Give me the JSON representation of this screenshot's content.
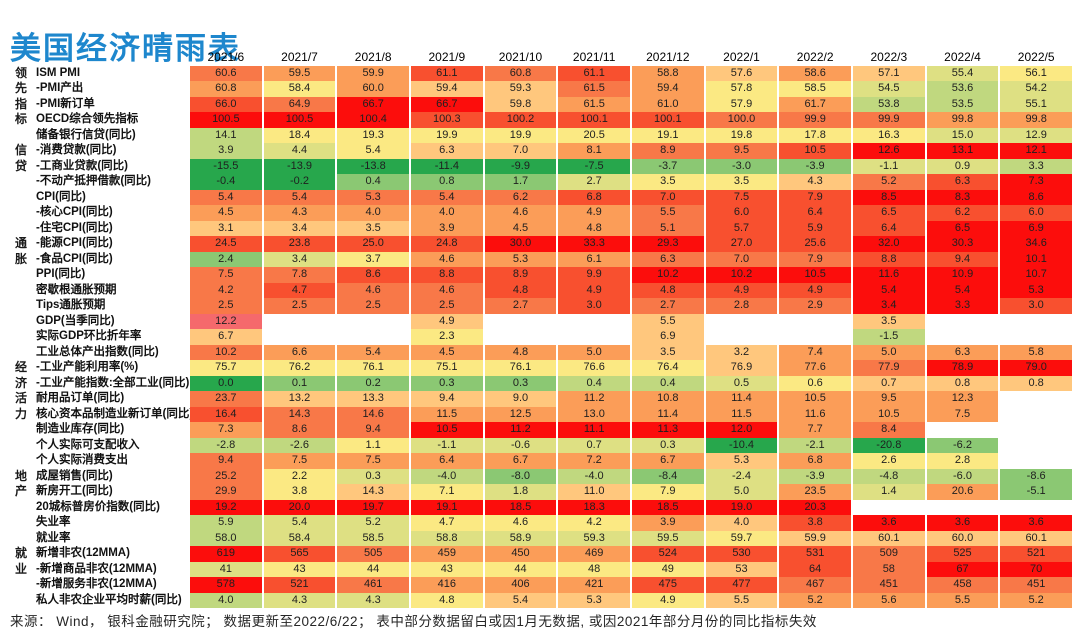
{
  "title": "美国经济晴雨表",
  "title_color": "#1E87CD",
  "footer": "来源： Wind， 银科金融研究院； 数据更新至2022/6/22； 表中部分数据留白或因1月无数据, 或因2021年部分月份的同比指标失效",
  "palette": {
    "g3": "#27A74C",
    "g2": "#8BC873",
    "g1": "#C0D87F",
    "y1": "#DEE083",
    "y2": "#FBE983",
    "o1": "#FFC77D",
    "o2": "#FB9D58",
    "o3": "#F87848",
    "r1": "#F8502F",
    "r2": "#FC0D0C",
    "pk": "#F5696C",
    "wh": "#FFFFFF"
  },
  "chart_data": {
    "type": "heatmap",
    "title": "美国经济晴雨表",
    "legend": "per-row green(low/cool) → yellow → red(high/hot) scale; blank cells = no data",
    "columns": [
      "2021/6",
      "2021/7",
      "2021/8",
      "2021/9",
      "2021/10",
      "2021/11",
      "2021/12",
      "2022/1",
      "2022/2",
      "2022/3",
      "2022/4",
      "2022/5"
    ],
    "rows": [
      {
        "group": "领",
        "label": "ISM PMI",
        "values": [
          "60.6",
          "59.5",
          "59.9",
          "61.1",
          "60.8",
          "61.1",
          "58.8",
          "57.6",
          "58.6",
          "57.1",
          "55.4",
          "56.1"
        ],
        "tones": [
          "o3",
          "o2",
          "o2",
          "r1",
          "o3",
          "r1",
          "o2",
          "o1",
          "o2",
          "o1",
          "y1",
          "y2"
        ]
      },
      {
        "group": "先",
        "label": "-PMI产出",
        "values": [
          "60.8",
          "58.4",
          "60.0",
          "59.4",
          "59.3",
          "61.5",
          "59.4",
          "57.8",
          "58.5",
          "54.5",
          "53.6",
          "54.2"
        ],
        "tones": [
          "o2",
          "y2",
          "o2",
          "o1",
          "o1",
          "o3",
          "o2",
          "y2",
          "y2",
          "y1",
          "g1",
          "y1"
        ]
      },
      {
        "group": "指",
        "label": "-PMI新订单",
        "values": [
          "66.0",
          "64.9",
          "66.7",
          "66.7",
          "59.8",
          "61.5",
          "61.0",
          "57.9",
          "61.7",
          "53.8",
          "53.5",
          "55.1"
        ],
        "tones": [
          "r1",
          "o3",
          "r2",
          "r2",
          "o1",
          "o2",
          "o2",
          "y2",
          "o2",
          "g1",
          "g1",
          "y1"
        ]
      },
      {
        "group": "标",
        "label": "OECD综合领先指标",
        "values": [
          "100.5",
          "100.5",
          "100.4",
          "100.3",
          "100.2",
          "100.1",
          "100.1",
          "100.0",
          "99.9",
          "99.9",
          "99.8",
          "99.8"
        ],
        "tones": [
          "r2",
          "r2",
          "r2",
          "r1",
          "r1",
          "r1",
          "r1",
          "o3",
          "o3",
          "o3",
          "o2",
          "o2"
        ]
      },
      {
        "group": "",
        "label": "储备银行信贷(同比)",
        "values": [
          "14.1",
          "18.4",
          "19.3",
          "19.9",
          "19.9",
          "20.5",
          "19.1",
          "19.8",
          "17.8",
          "16.3",
          "15.0",
          "12.9"
        ],
        "tones": [
          "g1",
          "y2",
          "y2",
          "y2",
          "y2",
          "y2",
          "y2",
          "y2",
          "y2",
          "y2",
          "y1",
          "y1"
        ]
      },
      {
        "group": "信",
        "label": "-消费贷款(同比)",
        "values": [
          "3.9",
          "4.4",
          "5.4",
          "6.3",
          "7.0",
          "8.1",
          "8.9",
          "9.5",
          "10.5",
          "12.6",
          "13.1",
          "12.1"
        ],
        "tones": [
          "g1",
          "y1",
          "y2",
          "o1",
          "o1",
          "o2",
          "o3",
          "o3",
          "r1",
          "r2",
          "r2",
          "r2"
        ]
      },
      {
        "group": "贷",
        "label": "-工商业贷款(同比)",
        "values": [
          "-15.5",
          "-13.9",
          "-13.8",
          "-11.4",
          "-9.9",
          "-7.5",
          "-3.7",
          "-3.0",
          "-3.9",
          "-1.1",
          "0.9",
          "3.3"
        ],
        "tones": [
          "g3",
          "g3",
          "g3",
          "g3",
          "g3",
          "g3",
          "g2",
          "g2",
          "g2",
          "y1",
          "y1",
          "g1"
        ]
      },
      {
        "group": "",
        "label": "-不动产抵押借款(同比)",
        "values": [
          "-0.4",
          "-0.2",
          "0.4",
          "0.8",
          "1.7",
          "2.7",
          "3.5",
          "3.5",
          "4.3",
          "5.2",
          "6.3",
          "7.3"
        ],
        "tones": [
          "g3",
          "g3",
          "g2",
          "g2",
          "g2",
          "y1",
          "y2",
          "y2",
          "o1",
          "o3",
          "r1",
          "r2"
        ]
      },
      {
        "group": "",
        "label": "CPI(同比)",
        "values": [
          "5.4",
          "5.4",
          "5.3",
          "5.4",
          "6.2",
          "6.8",
          "7.0",
          "7.5",
          "7.9",
          "8.5",
          "8.3",
          "8.6"
        ],
        "tones": [
          "o3",
          "o3",
          "o3",
          "o3",
          "o3",
          "r1",
          "r1",
          "r1",
          "r1",
          "r2",
          "r2",
          "r2"
        ]
      },
      {
        "group": "",
        "label": "-核心CPI(同比)",
        "values": [
          "4.5",
          "4.3",
          "4.0",
          "4.0",
          "4.6",
          "4.9",
          "5.5",
          "6.0",
          "6.4",
          "6.5",
          "6.2",
          "6.0"
        ],
        "tones": [
          "o2",
          "o2",
          "o2",
          "o2",
          "o2",
          "o2",
          "o3",
          "r1",
          "r1",
          "r1",
          "r1",
          "r1"
        ]
      },
      {
        "group": "",
        "label": "-住宅CPI(同比)",
        "values": [
          "3.1",
          "3.4",
          "3.5",
          "3.9",
          "4.5",
          "4.8",
          "5.1",
          "5.7",
          "5.9",
          "6.4",
          "6.5",
          "6.9"
        ],
        "tones": [
          "o1",
          "o1",
          "o1",
          "o2",
          "o2",
          "o2",
          "o3",
          "r1",
          "r1",
          "r1",
          "r2",
          "r2"
        ]
      },
      {
        "group": "通",
        "label": "-能源CPI(同比)",
        "values": [
          "24.5",
          "23.8",
          "25.0",
          "24.8",
          "30.0",
          "33.3",
          "29.3",
          "27.0",
          "25.6",
          "32.0",
          "30.3",
          "34.6"
        ],
        "tones": [
          "r1",
          "r1",
          "r1",
          "r1",
          "r2",
          "r2",
          "r2",
          "r1",
          "r1",
          "r2",
          "r2",
          "r2"
        ]
      },
      {
        "group": "胀",
        "label": "-食品CPI(同比)",
        "values": [
          "2.4",
          "3.4",
          "3.7",
          "4.6",
          "5.3",
          "6.1",
          "6.3",
          "7.0",
          "7.9",
          "8.8",
          "9.4",
          "10.1"
        ],
        "tones": [
          "g2",
          "y1",
          "y2",
          "o2",
          "o2",
          "o2",
          "o3",
          "o3",
          "o3",
          "r1",
          "r1",
          "r2"
        ]
      },
      {
        "group": "",
        "label": "PPI(同比)",
        "values": [
          "7.5",
          "7.8",
          "8.6",
          "8.8",
          "8.9",
          "9.9",
          "10.2",
          "10.2",
          "10.5",
          "11.6",
          "10.9",
          "10.7"
        ],
        "tones": [
          "o3",
          "o3",
          "r1",
          "r1",
          "r1",
          "r1",
          "r2",
          "r2",
          "r2",
          "r2",
          "r2",
          "r2"
        ]
      },
      {
        "group": "",
        "label": "密歇根通胀预期",
        "values": [
          "4.2",
          "4.7",
          "4.6",
          "4.6",
          "4.8",
          "4.9",
          "4.8",
          "4.9",
          "4.9",
          "5.4",
          "5.4",
          "5.3"
        ],
        "tones": [
          "o3",
          "r1",
          "o3",
          "o3",
          "r1",
          "r1",
          "r1",
          "r1",
          "r1",
          "r2",
          "r2",
          "r2"
        ]
      },
      {
        "group": "",
        "label": "Tips通胀预期",
        "values": [
          "2.5",
          "2.5",
          "2.5",
          "2.5",
          "2.7",
          "3.0",
          "2.7",
          "2.8",
          "2.9",
          "3.4",
          "3.3",
          "3.0"
        ],
        "tones": [
          "o3",
          "o3",
          "o3",
          "o3",
          "o3",
          "r1",
          "o3",
          "o3",
          "o3",
          "r2",
          "r2",
          "r1"
        ]
      },
      {
        "group": "",
        "label": "GDP(当季同比)",
        "values": [
          "12.2",
          "",
          "",
          "4.9",
          "",
          "",
          "5.5",
          "",
          "",
          "3.5",
          "",
          ""
        ],
        "tones": [
          "pk",
          "wh",
          "wh",
          "o1",
          "wh",
          "wh",
          "o1",
          "wh",
          "wh",
          "o1",
          "wh",
          "wh"
        ]
      },
      {
        "group": "",
        "label": "实际GDP环比折年率",
        "values": [
          "6.7",
          "",
          "",
          "2.3",
          "",
          "",
          "6.9",
          "",
          "",
          "-1.5",
          "",
          ""
        ],
        "tones": [
          "o1",
          "wh",
          "wh",
          "y2",
          "wh",
          "wh",
          "o1",
          "wh",
          "wh",
          "g1",
          "wh",
          "wh"
        ]
      },
      {
        "group": "",
        "label": "工业总体产出指数(同比)",
        "values": [
          "10.2",
          "6.6",
          "5.4",
          "4.5",
          "4.8",
          "5.0",
          "3.5",
          "3.2",
          "7.4",
          "5.0",
          "6.3",
          "5.8"
        ],
        "tones": [
          "o3",
          "o2",
          "o2",
          "o2",
          "o2",
          "o2",
          "o1",
          "o1",
          "o2",
          "o2",
          "o2",
          "o2"
        ]
      },
      {
        "group": "经",
        "label": "-工业产能利用率(%)",
        "values": [
          "75.7",
          "76.2",
          "76.1",
          "75.1",
          "76.1",
          "76.6",
          "76.4",
          "76.9",
          "77.6",
          "77.9",
          "78.9",
          "79.0"
        ],
        "tones": [
          "y2",
          "y2",
          "y2",
          "y2",
          "y2",
          "y2",
          "y2",
          "o1",
          "o2",
          "o3",
          "r2",
          "r2"
        ]
      },
      {
        "group": "济",
        "label": "-工业产能指数:全部工业(同比)",
        "values": [
          "0.0",
          "0.1",
          "0.2",
          "0.3",
          "0.3",
          "0.4",
          "0.4",
          "0.5",
          "0.6",
          "0.7",
          "0.8",
          "0.8"
        ],
        "tones": [
          "g3",
          "g2",
          "g2",
          "g2",
          "g2",
          "g1",
          "g1",
          "y1",
          "y2",
          "o1",
          "o1",
          "o1"
        ]
      },
      {
        "group": "活",
        "label": "耐用品订单(同比)",
        "values": [
          "23.7",
          "13.2",
          "13.3",
          "9.4",
          "9.0",
          "11.2",
          "10.8",
          "11.4",
          "10.5",
          "9.5",
          "12.3",
          ""
        ],
        "tones": [
          "o3",
          "o1",
          "o1",
          "o1",
          "o1",
          "o2",
          "o2",
          "o2",
          "o2",
          "o2",
          "o2",
          "wh"
        ]
      },
      {
        "group": "力",
        "label": "核心资本品制造业新订单(同比)",
        "values": [
          "16.4",
          "14.3",
          "14.6",
          "11.5",
          "12.5",
          "13.0",
          "11.4",
          "11.5",
          "11.6",
          "10.5",
          "7.5",
          ""
        ],
        "tones": [
          "r1",
          "o3",
          "o3",
          "o2",
          "o2",
          "o2",
          "o2",
          "o2",
          "o2",
          "o2",
          "o2",
          "wh"
        ]
      },
      {
        "group": "",
        "label": "制造业库存(同比)",
        "values": [
          "7.3",
          "8.6",
          "9.4",
          "10.5",
          "11.2",
          "11.1",
          "11.3",
          "12.0",
          "7.7",
          "8.4",
          "",
          ""
        ],
        "tones": [
          "o2",
          "o3",
          "o3",
          "r2",
          "r2",
          "r2",
          "r2",
          "r2",
          "o2",
          "o3",
          "wh",
          "wh"
        ]
      },
      {
        "group": "",
        "label": "个人实际可支配收入",
        "values": [
          "-2.8",
          "-2.6",
          "1.1",
          "-1.1",
          "-0.6",
          "0.7",
          "0.3",
          "-10.4",
          "-2.1",
          "-20.8",
          "-6.2",
          ""
        ],
        "tones": [
          "g1",
          "g1",
          "y2",
          "y1",
          "y1",
          "y1",
          "y1",
          "g3",
          "g1",
          "g3",
          "g2",
          "wh"
        ]
      },
      {
        "group": "",
        "label": "个人实际消费支出",
        "values": [
          "9.4",
          "7.5",
          "7.5",
          "6.4",
          "6.7",
          "7.2",
          "6.7",
          "5.3",
          "6.8",
          "2.6",
          "2.8",
          ""
        ],
        "tones": [
          "o3",
          "o2",
          "o2",
          "o2",
          "o2",
          "o2",
          "o2",
          "o1",
          "o2",
          "y2",
          "y2",
          "wh"
        ]
      },
      {
        "group": "地",
        "label": "成屋销售(同比)",
        "values": [
          "25.2",
          "2.2",
          "0.3",
          "-4.0",
          "-8.0",
          "-4.0",
          "-8.4",
          "-2.4",
          "-3.9",
          "-4.8",
          "-6.0",
          "-8.6"
        ],
        "tones": [
          "o3",
          "y2",
          "y1",
          "g1",
          "g2",
          "g1",
          "g2",
          "y1",
          "g1",
          "g1",
          "g1",
          "g2"
        ]
      },
      {
        "group": "产",
        "label": "新房开工(同比)",
        "values": [
          "29.9",
          "3.8",
          "14.3",
          "7.1",
          "1.8",
          "11.0",
          "7.9",
          "5.0",
          "23.5",
          "1.4",
          "20.6",
          "-5.1"
        ],
        "tones": [
          "o3",
          "y2",
          "o1",
          "y2",
          "y1",
          "o1",
          "y2",
          "y1",
          "o2",
          "y1",
          "o2",
          "g2"
        ]
      },
      {
        "group": "",
        "label": "20城标普房价指数(同比)",
        "values": [
          "19.2",
          "20.0",
          "19.7",
          "19.1",
          "18.5",
          "18.3",
          "18.5",
          "19.0",
          "20.3",
          "",
          "",
          ""
        ],
        "tones": [
          "r2",
          "r2",
          "r2",
          "r2",
          "r2",
          "r2",
          "r2",
          "r2",
          "r2",
          "wh",
          "wh",
          "wh"
        ]
      },
      {
        "group": "",
        "label": "失业率",
        "values": [
          "5.9",
          "5.4",
          "5.2",
          "4.7",
          "4.6",
          "4.2",
          "3.9",
          "4.0",
          "3.8",
          "3.6",
          "3.6",
          "3.6"
        ],
        "tones": [
          "g1",
          "y1",
          "y1",
          "y2",
          "y2",
          "y2",
          "o2",
          "o1",
          "r1",
          "r2",
          "r2",
          "r2"
        ]
      },
      {
        "group": "",
        "label": "就业率",
        "values": [
          "58.0",
          "58.4",
          "58.5",
          "58.8",
          "58.9",
          "59.3",
          "59.5",
          "59.7",
          "59.9",
          "60.1",
          "60.0",
          "60.1"
        ],
        "tones": [
          "g1",
          "y1",
          "y1",
          "y1",
          "y1",
          "y1",
          "y1",
          "y2",
          "o1",
          "o1",
          "o1",
          "o1"
        ]
      },
      {
        "group": "就",
        "label": "新增非农(12MMA)",
        "values": [
          "619",
          "565",
          "505",
          "459",
          "450",
          "469",
          "524",
          "530",
          "531",
          "509",
          "525",
          "521"
        ],
        "tones": [
          "r2",
          "r1",
          "o3",
          "o2",
          "o2",
          "o2",
          "r1",
          "r1",
          "r1",
          "o3",
          "r1",
          "r1"
        ]
      },
      {
        "group": "业",
        "label": "-新增商品非农(12MMA)",
        "values": [
          "41",
          "43",
          "44",
          "43",
          "44",
          "48",
          "49",
          "53",
          "64",
          "58",
          "67",
          "70"
        ],
        "tones": [
          "y1",
          "y2",
          "y2",
          "y2",
          "y2",
          "y2",
          "y2",
          "o1",
          "r1",
          "o3",
          "r2",
          "r2"
        ]
      },
      {
        "group": "",
        "label": "-新增服务非农(12MMA)",
        "values": [
          "578",
          "521",
          "461",
          "416",
          "406",
          "421",
          "475",
          "477",
          "467",
          "451",
          "458",
          "451"
        ],
        "tones": [
          "r2",
          "r1",
          "o3",
          "o2",
          "o2",
          "o2",
          "r1",
          "r1",
          "o3",
          "o3",
          "o3",
          "o3"
        ]
      },
      {
        "group": "",
        "label": "私人非农企业平均时薪(同比)",
        "values": [
          "4.0",
          "4.3",
          "4.3",
          "4.8",
          "5.4",
          "5.3",
          "4.9",
          "5.5",
          "5.2",
          "5.6",
          "5.5",
          "5.2"
        ],
        "tones": [
          "g1",
          "y1",
          "y1",
          "y2",
          "o1",
          "o1",
          "y2",
          "o1",
          "o2",
          "o2",
          "o2",
          "o2"
        ]
      }
    ]
  }
}
